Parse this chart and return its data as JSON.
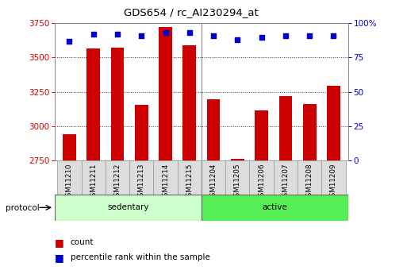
{
  "title": "GDS654 / rc_AI230294_at",
  "samples": [
    "GSM11210",
    "GSM11211",
    "GSM11212",
    "GSM11213",
    "GSM11214",
    "GSM11215",
    "GSM11204",
    "GSM11205",
    "GSM11206",
    "GSM11207",
    "GSM11208",
    "GSM11209"
  ],
  "counts": [
    2940,
    3565,
    3570,
    3155,
    3720,
    3590,
    3195,
    2762,
    3115,
    3220,
    3160,
    3295
  ],
  "percentiles": [
    87,
    92,
    92,
    91,
    93,
    93,
    91,
    88,
    90,
    91,
    91,
    91
  ],
  "group_colors": {
    "sedentary": "#ccffcc",
    "active": "#55ee55"
  },
  "bar_color": "#cc0000",
  "dot_color": "#0000cc",
  "ylim_left": [
    2750,
    3750
  ],
  "ylim_right": [
    0,
    100
  ],
  "yticks_left": [
    2750,
    3000,
    3250,
    3500,
    3750
  ],
  "yticks_right": [
    0,
    25,
    50,
    75,
    100
  ],
  "ytick_labels_right": [
    "0",
    "25",
    "50",
    "75",
    "100%"
  ],
  "background_color": "#ffffff",
  "bar_width": 0.55,
  "sep_idx": 5.5,
  "n_sedentary": 6,
  "n_active": 6
}
